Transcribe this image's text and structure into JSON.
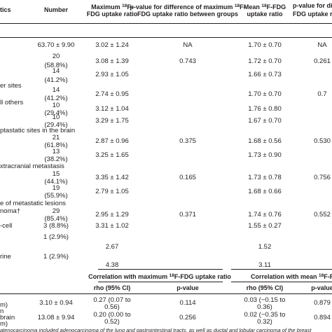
{
  "header": {
    "characteristics": "tics",
    "number": "Number",
    "max": [
      [
        "Maximum ",
        "18",
        "F-"
      ],
      [
        "FDG uptake ratio"
      ]
    ],
    "p_max": [
      [
        "p-value for difference of maximum ",
        "18",
        "F-"
      ],
      [
        "FDG uptake ratio between groups"
      ]
    ],
    "mean": [
      [
        "Mean ",
        "18",
        "F-FDG"
      ],
      [
        "uptake ratio"
      ]
    ],
    "p_mean": [
      [
        "p-value for difference o"
      ],
      [
        "FDG uptake ratio betw"
      ]
    ]
  },
  "labels": [
    "er sites",
    "ll others",
    "ptastatic sites in the brain",
    "xtracranial metastasis",
    "e of metastatic lesions",
    "noma†",
    "-cell",
    "rine"
  ],
  "rows": [
    {
      "number": "63.70 ± 9.90",
      "max": "3.02 ± 1.24",
      "p_max": "NA",
      "mean": "1.70 ± 0.70",
      "p_mean": "NA"
    },
    {
      "number": "20",
      "pct": "(58.8%)",
      "max": "3.08 ± 1.39",
      "p_max": "0.743",
      "mean": "1.72 ± 0.70",
      "p_mean": "0.261"
    },
    {
      "number": "14",
      "pct": "(41.2%)",
      "max": "2.93 ± 1.05",
      "mean": "1.66 ± 0.73"
    },
    {
      "number": "14",
      "pct": "(41.2%)",
      "max": "2.74 ± 0.95",
      "mean": "1.70 ± 0.70",
      "p_mean": "0.7"
    },
    {
      "number": "10",
      "pct": "(29.4%)",
      "max": "3.12 ± 1.04",
      "mean": "1.76 ± 0.80"
    },
    {
      "number": "10",
      "pct": "(29.4%)",
      "max": "3.29 ± 1.75",
      "mean": "1.67 ± 0.70"
    },
    {
      "number": "21",
      "pct": "(61.8%)",
      "max": "2.87 ± 0.96",
      "p_max": "0.375",
      "mean": "1.68 ± 0.56",
      "p_mean": "0.530"
    },
    {
      "number": "13",
      "pct": "(38.2%)",
      "max": "3.25 ± 1.65",
      "mean": "1.73 ± 0.90"
    },
    {
      "number": "15",
      "pct": "(44.1%)",
      "max": "3.35 ± 1.42",
      "p_max": "0.165",
      "mean": "1.73 ± 0.78",
      "p_mean": "0.756"
    },
    {
      "number": "19",
      "pct": "(55.9%)",
      "max": "2.79 ± 1.05",
      "mean": "1.68 ± 0.66"
    },
    {
      "number": "29",
      "pct": "(85.4%)",
      "max": "2.95 ± 1.29",
      "p_max": "0.371",
      "mean": "1.74 ± 0.76",
      "p_mean": "0.552"
    },
    {
      "number": "3 (8.8%)",
      "max": "3.31 ± 1.02",
      "mean": "1.55 ± 0.27"
    },
    {
      "number": "1 (2.9%)",
      "max": "2.67",
      "mean": "1.52"
    },
    {
      "number": "1 (2.9%)",
      "max": "4.38",
      "mean": "3.11"
    }
  ],
  "table2": {
    "header": [
      [
        "Correlation with maximum ",
        "18",
        "F-FDG uptake ratio"
      ],
      [
        "Correlation with mean ",
        "18",
        "F-FDG uptake"
      ]
    ],
    "subheader": [
      "rho (95% CI)",
      "p-value",
      "rho (95% CI)",
      "p-value"
    ],
    "labels": [
      "m)",
      "n",
      "brain",
      "m)"
    ],
    "rows": [
      {
        "value": "3.10 ± 0.94",
        "rho_max": [
          "0.27 (0.07 to",
          "0.56)"
        ],
        "p_max": "0.114",
        "rho_mean": [
          "0.03 (−0.15 to",
          "0.36)"
        ],
        "p_mean": "0.879"
      },
      {
        "value": "13.08 ± 9.94",
        "rho_max": [
          "0.20 (0.00 to",
          "0.52)"
        ],
        "p_max": "0.256",
        "rho_mean": [
          "0.02 (−0.35 to",
          "0.32)"
        ],
        "p_mean": "0.894"
      }
    ]
  },
  "footnote": "atenocarcinoma included adenocarcinoma of the lung and gastrointestinal tracts, as well as ductal and lobular carcinoma of the breast"
}
